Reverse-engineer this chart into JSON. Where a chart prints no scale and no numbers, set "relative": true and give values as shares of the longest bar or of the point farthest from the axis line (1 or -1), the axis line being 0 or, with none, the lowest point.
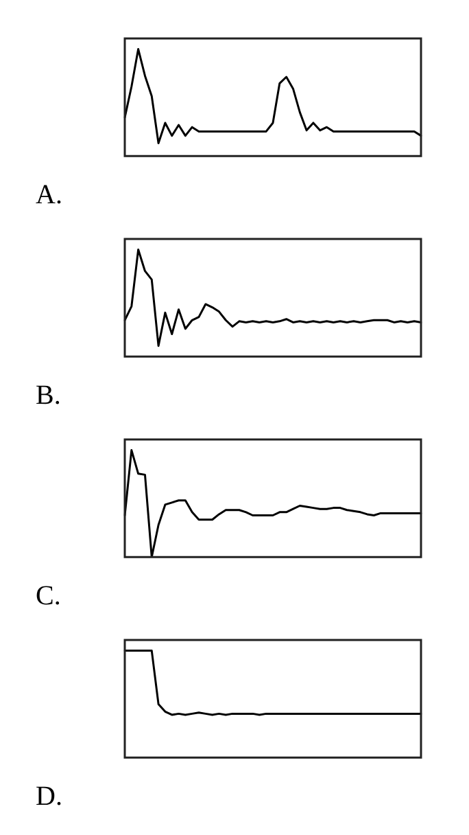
{
  "chart_data": [
    {
      "type": "line",
      "title": "A.",
      "relative": true,
      "marker": "none",
      "categories": [
        null,
        null,
        null,
        null,
        null,
        null,
        null,
        null,
        null,
        null,
        null,
        null,
        null,
        null,
        null,
        null,
        null,
        null,
        null,
        null,
        null,
        null,
        null,
        null,
        null,
        null,
        null,
        null,
        null,
        null,
        null,
        null,
        null,
        null,
        null,
        null,
        null,
        null,
        null,
        null,
        null,
        null,
        null,
        null,
        null
      ],
      "series": [
        {
          "color": "#000000",
          "values": [
            0.36,
            0.65,
            1.0,
            0.75,
            0.56,
            0.12,
            0.31,
            0.19,
            0.29,
            0.19,
            0.27,
            0.23,
            0.23,
            0.23,
            0.23,
            0.23,
            0.23,
            0.23,
            0.23,
            0.23,
            0.23,
            0.23,
            0.31,
            0.68,
            0.74,
            0.63,
            0.41,
            0.24,
            0.31,
            0.24,
            0.27,
            0.23,
            0.23,
            0.23,
            0.23,
            0.23,
            0.23,
            0.23,
            0.23,
            0.23,
            0.23,
            0.23,
            0.23,
            0.23,
            0.19
          ]
        }
      ]
    },
    {
      "type": "line",
      "title": "B.",
      "relative": true,
      "marker": "none",
      "categories": [
        null,
        null,
        null,
        null,
        null,
        null,
        null,
        null,
        null,
        null,
        null,
        null,
        null,
        null,
        null,
        null,
        null,
        null,
        null,
        null,
        null,
        null,
        null,
        null,
        null,
        null,
        null,
        null,
        null,
        null,
        null,
        null,
        null,
        null,
        null,
        null,
        null,
        null,
        null,
        null,
        null,
        null,
        null,
        null,
        null
      ],
      "series": [
        {
          "color": "#000000",
          "values": [
            0.34,
            0.47,
            1.0,
            0.8,
            0.72,
            0.1,
            0.41,
            0.21,
            0.44,
            0.26,
            0.34,
            0.37,
            0.49,
            0.46,
            0.42,
            0.34,
            0.28,
            0.33,
            0.32,
            0.33,
            0.32,
            0.33,
            0.32,
            0.33,
            0.35,
            0.32,
            0.33,
            0.32,
            0.33,
            0.32,
            0.33,
            0.32,
            0.33,
            0.32,
            0.33,
            0.32,
            0.33,
            0.34,
            0.34,
            0.34,
            0.32,
            0.33,
            0.32,
            0.33,
            0.32
          ]
        }
      ]
    },
    {
      "type": "line",
      "title": "C.",
      "relative": true,
      "marker": "none",
      "categories": [
        null,
        null,
        null,
        null,
        null,
        null,
        null,
        null,
        null,
        null,
        null,
        null,
        null,
        null,
        null,
        null,
        null,
        null,
        null,
        null,
        null,
        null,
        null,
        null,
        null,
        null,
        null,
        null,
        null,
        null,
        null,
        null,
        null,
        null,
        null,
        null,
        null,
        null,
        null,
        null,
        null,
        null,
        null,
        null,
        null
      ],
      "series": [
        {
          "color": "#000000",
          "values": [
            0.39,
            1.0,
            0.78,
            0.77,
            0.0,
            0.3,
            0.49,
            0.51,
            0.53,
            0.53,
            0.42,
            0.35,
            0.35,
            0.35,
            0.4,
            0.44,
            0.44,
            0.44,
            0.42,
            0.39,
            0.39,
            0.39,
            0.39,
            0.42,
            0.42,
            0.45,
            0.48,
            0.47,
            0.46,
            0.45,
            0.45,
            0.46,
            0.46,
            0.44,
            0.43,
            0.42,
            0.4,
            0.39,
            0.41,
            0.41,
            0.41,
            0.41,
            0.41,
            0.41,
            0.41
          ]
        }
      ]
    },
    {
      "type": "line",
      "title": "D.",
      "relative": true,
      "marker": "none",
      "categories": [
        null,
        null,
        null,
        null,
        null,
        null,
        null,
        null,
        null,
        null,
        null,
        null,
        null,
        null,
        null,
        null,
        null,
        null,
        null,
        null,
        null,
        null,
        null,
        null,
        null,
        null,
        null,
        null,
        null,
        null,
        null,
        null,
        null,
        null,
        null,
        null,
        null,
        null,
        null,
        null,
        null,
        null,
        null,
        null,
        null
      ],
      "series": [
        {
          "color": "#000000",
          "values": [
            1.0,
            1.0,
            1.0,
            1.0,
            1.0,
            0.5,
            0.43,
            0.4,
            0.41,
            0.4,
            0.41,
            0.42,
            0.41,
            0.4,
            0.41,
            0.4,
            0.41,
            0.41,
            0.41,
            0.41,
            0.4,
            0.41,
            0.41,
            0.41,
            0.41,
            0.41,
            0.41,
            0.41,
            0.41,
            0.41,
            0.41,
            0.41,
            0.41,
            0.41,
            0.41,
            0.41,
            0.41,
            0.41,
            0.41,
            0.41,
            0.41,
            0.41,
            0.41,
            0.41,
            0.41
          ]
        }
      ]
    }
  ]
}
